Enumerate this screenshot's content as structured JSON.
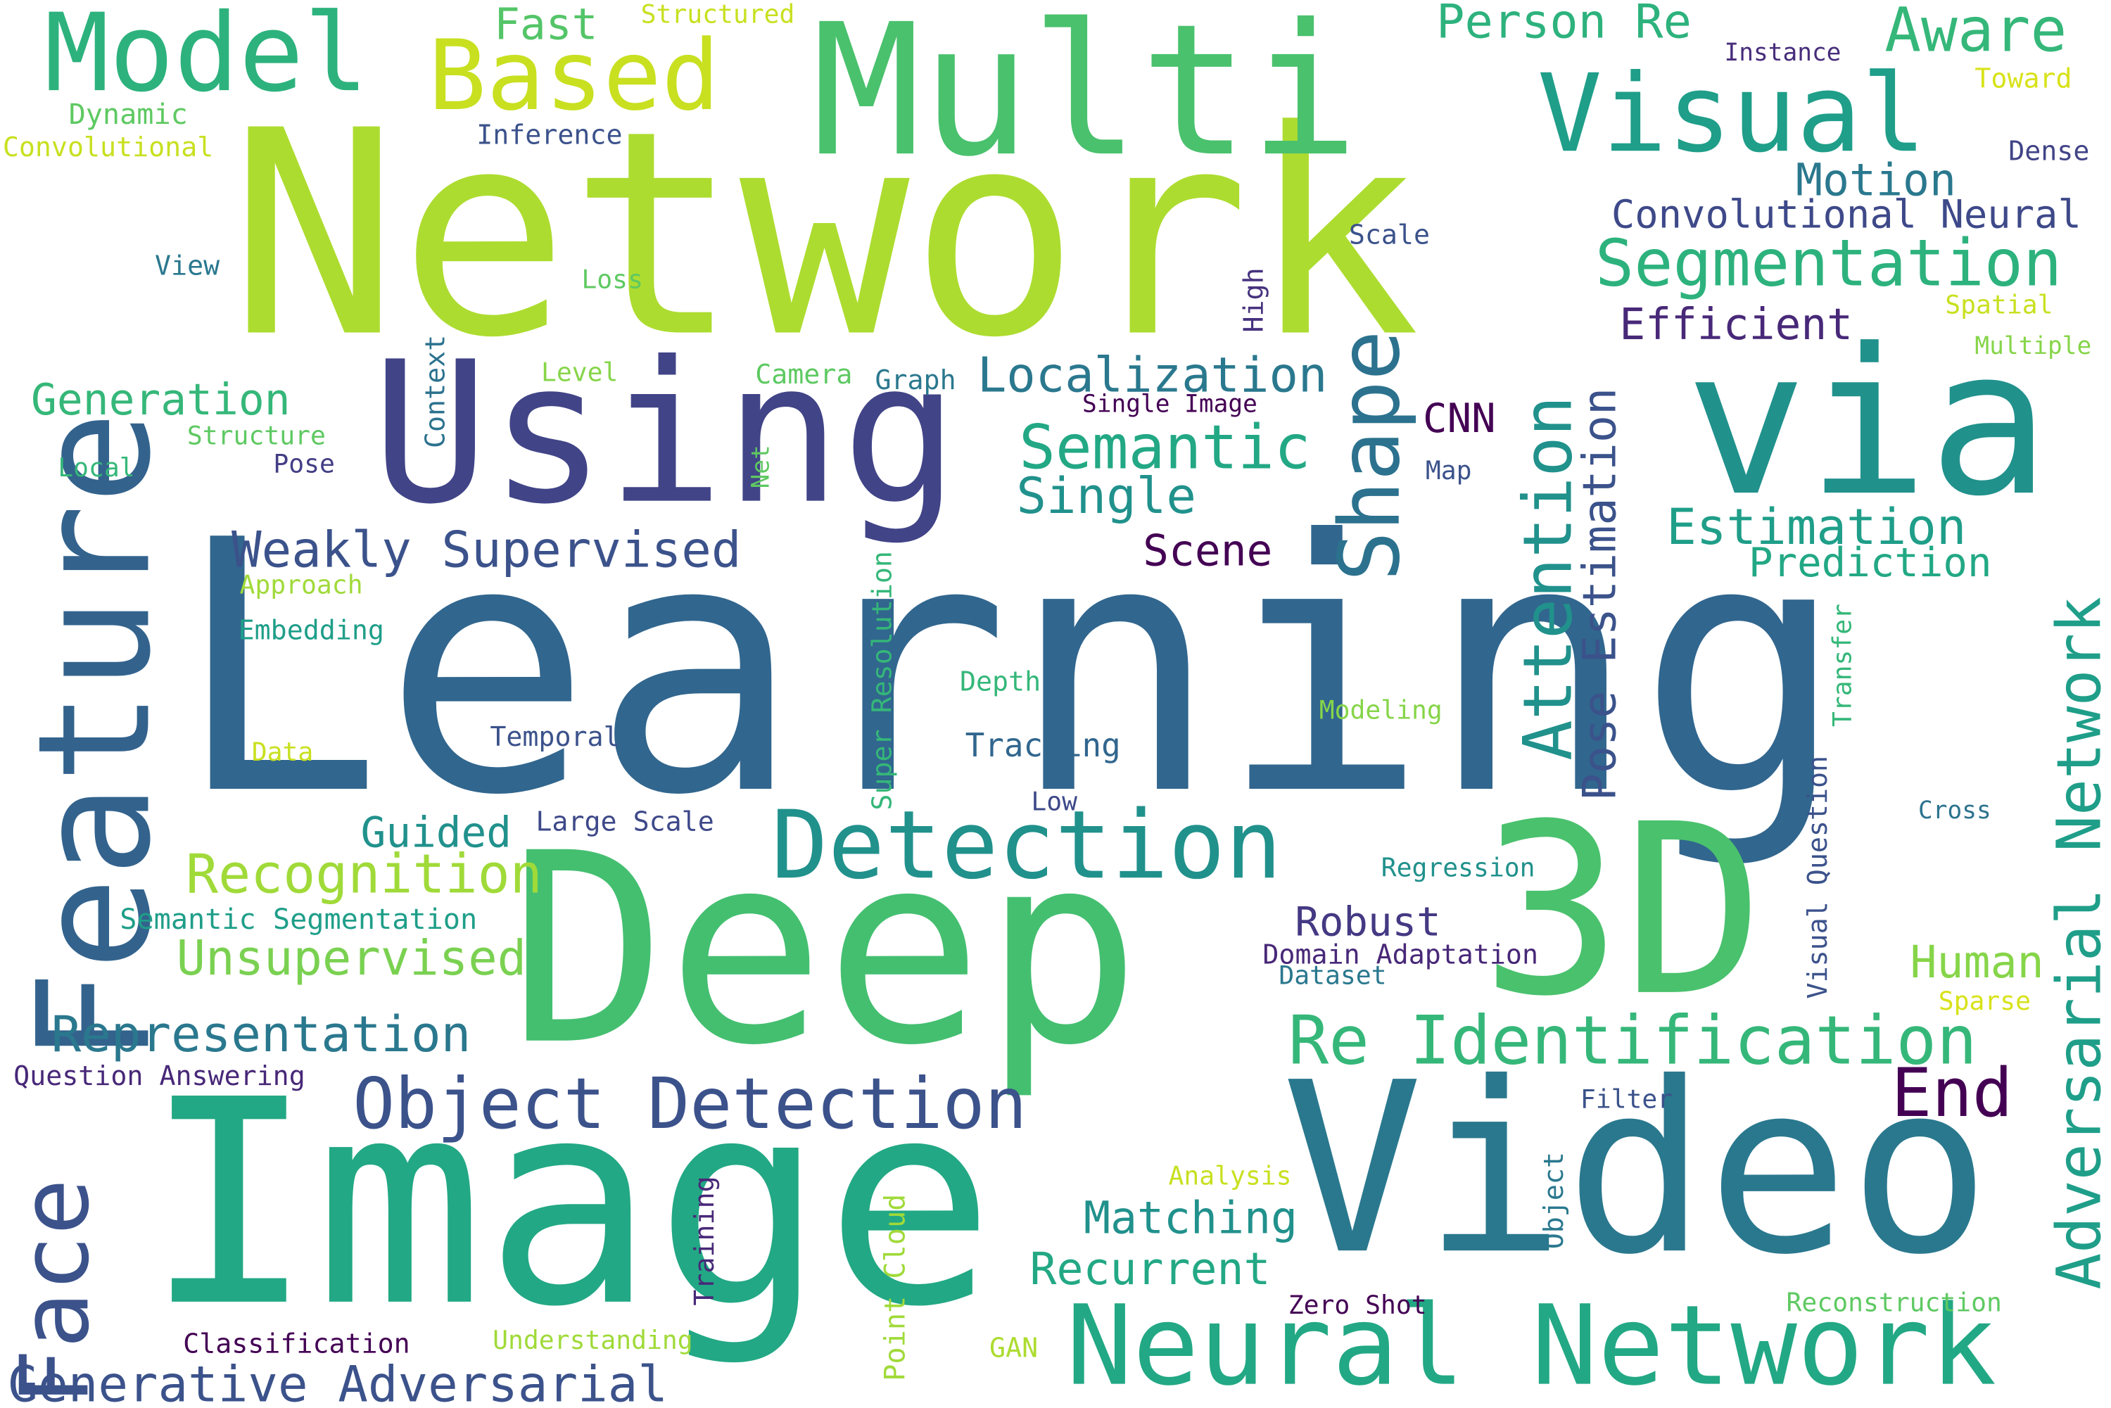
{
  "words": [
    {
      "text": "Learning",
      "color": "#31668e"
    },
    {
      "text": "Network",
      "color": "#addc30"
    },
    {
      "text": "Deep",
      "color": "#44bf70"
    },
    {
      "text": "Image",
      "color": "#22a884"
    },
    {
      "text": "Video",
      "color": "#2a788e"
    },
    {
      "text": "Multi",
      "color": "#4ac16d"
    },
    {
      "text": "Using",
      "color": "#414487"
    },
    {
      "text": "via",
      "color": "#21918c"
    },
    {
      "text": "Feature",
      "color": "#33638d"
    },
    {
      "text": "3D",
      "color": "#4ac16d"
    },
    {
      "text": "Face",
      "color": "#3b528b"
    },
    {
      "text": "Neural Network",
      "color": "#22a884"
    },
    {
      "text": "Detection",
      "color": "#21918c"
    },
    {
      "text": "Model",
      "color": "#2db27d"
    },
    {
      "text": "Based",
      "color": "#c8e020"
    },
    {
      "text": "Visual",
      "color": "#1f9e89"
    },
    {
      "text": "Shape",
      "color": "#2c728e"
    },
    {
      "text": "Object Detection",
      "color": "#3b528b"
    },
    {
      "text": "Attention",
      "color": "#21918c"
    },
    {
      "text": "Adversarial Network",
      "color": "#1f9e89"
    },
    {
      "text": "Re Identification",
      "color": "#35b779"
    },
    {
      "text": "Segmentation",
      "color": "#2db27d"
    },
    {
      "text": "Semantic",
      "color": "#22a884"
    },
    {
      "text": "Localization",
      "color": "#2a788e"
    },
    {
      "text": "Pose Estimation",
      "color": "#3b528b"
    },
    {
      "text": "End",
      "color": "#440154"
    },
    {
      "text": "Recognition",
      "color": "#a0da39"
    },
    {
      "text": "Generative Adversarial",
      "color": "#3b528b"
    },
    {
      "text": "Representation",
      "color": "#2a788e"
    },
    {
      "text": "Estimation",
      "color": "#1f9e89"
    },
    {
      "text": "Weakly Supervised",
      "color": "#3b528b"
    },
    {
      "text": "Unsupervised",
      "color": "#7ad151"
    },
    {
      "text": "Single",
      "color": "#21918c"
    },
    {
      "text": "Person Re",
      "color": "#2db27d"
    },
    {
      "text": "Aware",
      "color": "#35b779"
    },
    {
      "text": "Efficient",
      "color": "#482878"
    },
    {
      "text": "Matching",
      "color": "#21918c"
    },
    {
      "text": "Recurrent",
      "color": "#22a884"
    },
    {
      "text": "Human",
      "color": "#86d549"
    },
    {
      "text": "Motion",
      "color": "#2a788e"
    },
    {
      "text": "Convolutional Neural",
      "color": "#3e4989"
    },
    {
      "text": "Generation",
      "color": "#35b779"
    },
    {
      "text": "Guided",
      "color": "#21918c"
    },
    {
      "text": "Robust",
      "color": "#443983"
    },
    {
      "text": "Scene",
      "color": "#440154"
    },
    {
      "text": "Prediction",
      "color": "#22a884"
    },
    {
      "text": "CNN",
      "color": "#440154"
    },
    {
      "text": "Fast",
      "color": "#54c568"
    },
    {
      "text": "Tracking",
      "color": "#31668e"
    },
    {
      "text": "Embedding",
      "color": "#1f9e89"
    },
    {
      "text": "Semantic Segmentation",
      "color": "#1f9e89"
    },
    {
      "text": "Question Answering",
      "color": "#482878"
    },
    {
      "text": "Classification",
      "color": "#440154"
    },
    {
      "text": "Domain Adaptation",
      "color": "#482878"
    },
    {
      "text": "Large Scale",
      "color": "#3e4989"
    },
    {
      "text": "Temporal",
      "color": "#3b528b"
    },
    {
      "text": "Structured",
      "color": "#c8e020"
    },
    {
      "text": "Instance",
      "color": "#472d7b"
    },
    {
      "text": "Toward",
      "color": "#d8e219"
    },
    {
      "text": "Dense",
      "color": "#414487"
    },
    {
      "text": "Dynamic",
      "color": "#5ec962"
    },
    {
      "text": "Convolutional",
      "color": "#c8e020"
    },
    {
      "text": "Inference",
      "color": "#3b528b"
    },
    {
      "text": "View",
      "color": "#2a788e"
    },
    {
      "text": "Loss",
      "color": "#5ec962"
    },
    {
      "text": "Scale",
      "color": "#3b528b"
    },
    {
      "text": "High",
      "color": "#46327e"
    },
    {
      "text": "Spatial",
      "color": "#c8e020"
    },
    {
      "text": "Multiple",
      "color": "#86d549"
    },
    {
      "text": "Context",
      "color": "#2c728e"
    },
    {
      "text": "Level",
      "color": "#86d549"
    },
    {
      "text": "Camera",
      "color": "#5ec962"
    },
    {
      "text": "Graph",
      "color": "#2a788e"
    },
    {
      "text": "Single Image",
      "color": "#440154"
    },
    {
      "text": "Structure",
      "color": "#5ec962"
    },
    {
      "text": "Local",
      "color": "#35b779"
    },
    {
      "text": "Pose",
      "color": "#433e85"
    },
    {
      "text": "Net",
      "color": "#5ec962"
    },
    {
      "text": "Map",
      "color": "#3b528b"
    },
    {
      "text": "Approach",
      "color": "#a0da39"
    },
    {
      "text": "Super Resolution",
      "color": "#35b779"
    },
    {
      "text": "Transfer",
      "color": "#35b779"
    },
    {
      "text": "Depth",
      "color": "#35b779"
    },
    {
      "text": "Modeling",
      "color": "#86d549"
    },
    {
      "text": "Data",
      "color": "#c8e020"
    },
    {
      "text": "Low",
      "color": "#3e4989"
    },
    {
      "text": "Cross",
      "color": "#2c728e"
    },
    {
      "text": "Visual Question",
      "color": "#3b528b"
    },
    {
      "text": "Regression",
      "color": "#21918c"
    },
    {
      "text": "Dataset",
      "color": "#2a788e"
    },
    {
      "text": "Sparse",
      "color": "#d8e219"
    },
    {
      "text": "Filter",
      "color": "#3b528b"
    },
    {
      "text": "Analysis",
      "color": "#c8e020"
    },
    {
      "text": "Object",
      "color": "#2a788e"
    },
    {
      "text": "Training",
      "color": "#482878"
    },
    {
      "text": "Point Cloud",
      "color": "#a0da39"
    },
    {
      "text": "Zero Shot",
      "color": "#440154"
    },
    {
      "text": "Reconstruction",
      "color": "#5ec962"
    },
    {
      "text": "Understanding",
      "color": "#a0da39"
    },
    {
      "text": "GAN",
      "color": "#addc30"
    }
  ]
}
